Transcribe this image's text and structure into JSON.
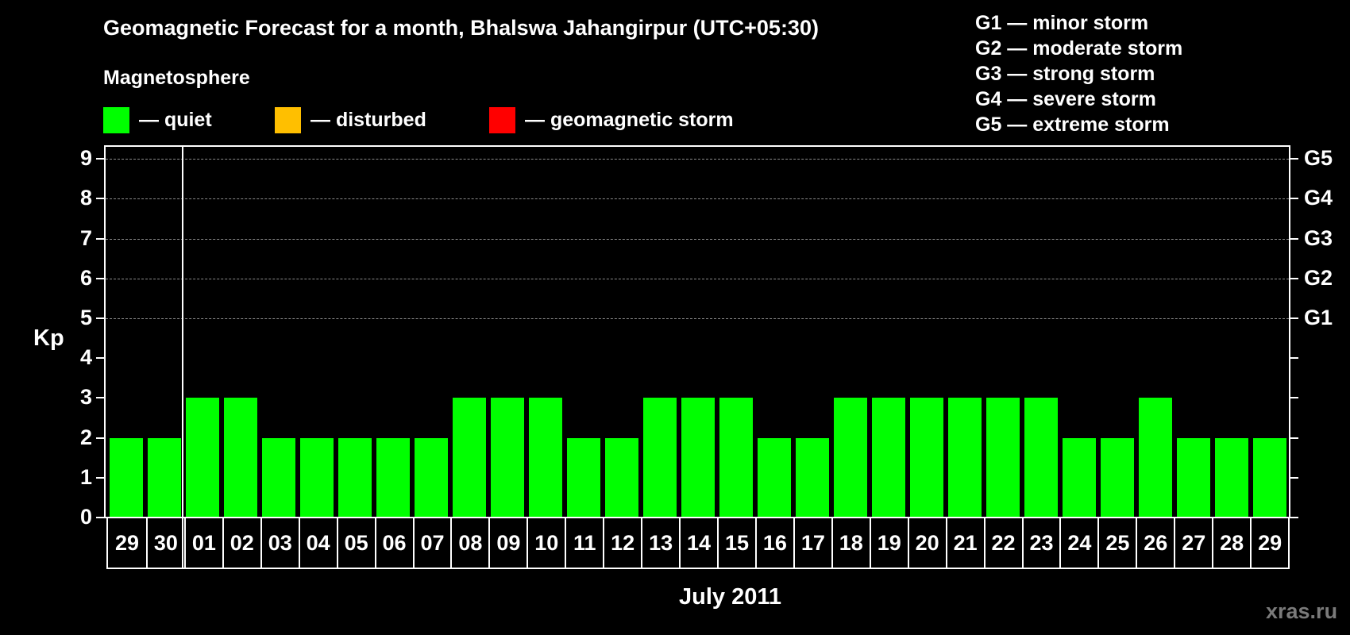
{
  "header": {
    "title": "Geomagnetic Forecast for a month, Bhalswa Jahangirpur (UTC+05:30)",
    "subtitle": "Magnetosphere"
  },
  "legend": [
    {
      "label": "— quiet",
      "color": "#00ff00"
    },
    {
      "label": "— disturbed",
      "color": "#ffbf00"
    },
    {
      "label": "— geomagnetic storm",
      "color": "#ff0000"
    }
  ],
  "storm_scale": [
    "G1 — minor storm",
    "G2 — moderate storm",
    "G3 — strong storm",
    "G4 — severe storm",
    "G5 — extreme storm"
  ],
  "axes": {
    "ylabel": "Kp",
    "xlabel": "July 2011",
    "yticks": [
      "0",
      "1",
      "2",
      "3",
      "4",
      "5",
      "6",
      "7",
      "8",
      "9"
    ],
    "right_labels": [
      {
        "kp": 5,
        "label": "G1"
      },
      {
        "kp": 6,
        "label": "G2"
      },
      {
        "kp": 7,
        "label": "G3"
      },
      {
        "kp": 8,
        "label": "G4"
      },
      {
        "kp": 9,
        "label": "G5"
      }
    ]
  },
  "watermark": "xras.ru",
  "chart_data": {
    "type": "bar",
    "title": "Geomagnetic Forecast for a month, Bhalswa Jahangirpur (UTC+05:30)",
    "xlabel": "July 2011",
    "ylabel": "Kp",
    "ylim": [
      0,
      9
    ],
    "grid": "dashed horizontal lines at Kp 5-9",
    "legend_position": "top",
    "categories": [
      "29",
      "30",
      "01",
      "02",
      "03",
      "04",
      "05",
      "06",
      "07",
      "08",
      "09",
      "10",
      "11",
      "12",
      "13",
      "14",
      "15",
      "16",
      "17",
      "18",
      "19",
      "20",
      "21",
      "22",
      "23",
      "24",
      "25",
      "26",
      "27",
      "28",
      "29"
    ],
    "values": [
      2,
      2,
      3,
      3,
      2,
      2,
      2,
      2,
      2,
      3,
      3,
      3,
      2,
      2,
      3,
      3,
      3,
      2,
      2,
      3,
      3,
      3,
      3,
      3,
      3,
      2,
      2,
      3,
      2,
      2,
      2
    ],
    "bar_status": "quiet",
    "bar_color": "#00ff00",
    "month_boundary_after_index": 1,
    "right_axis": {
      "5": "G1",
      "6": "G2",
      "7": "G3",
      "8": "G4",
      "9": "G5"
    }
  }
}
